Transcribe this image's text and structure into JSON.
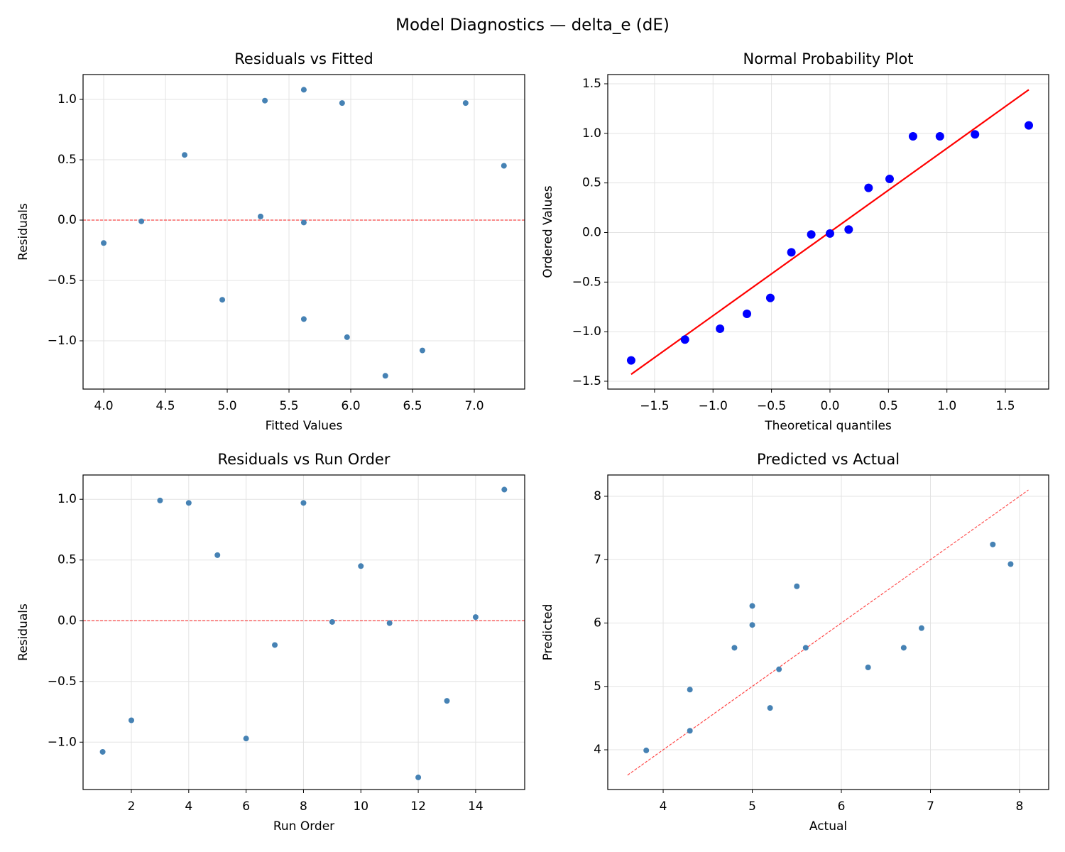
{
  "title": "Model Diagnostics — delta_e (dE)",
  "chart_data": [
    {
      "type": "scatter",
      "title": "Residuals vs Fitted",
      "xlabel": "Fitted Values",
      "ylabel": "Residuals",
      "x": [
        4.0,
        4.305,
        4.655,
        4.96,
        5.27,
        5.305,
        5.62,
        5.62,
        5.62,
        5.93,
        5.97,
        6.28,
        6.58,
        6.93,
        7.24
      ],
      "values": [
        -0.19,
        -0.01,
        0.54,
        -0.66,
        0.03,
        0.99,
        1.08,
        -0.02,
        -0.82,
        0.97,
        -0.97,
        -1.29,
        -1.08,
        0.97,
        0.45
      ],
      "color": "#4682b4",
      "marker_size": 4,
      "hline": {
        "y": 0,
        "color": "#ff0000",
        "dashed": true
      },
      "xlim": [
        3.833,
        7.408
      ],
      "ylim": [
        -1.4,
        1.206
      ],
      "xticks": [
        {
          "value": 4,
          "label": "4.0"
        },
        4.5,
        {
          "value": 5,
          "label": "5.0"
        },
        5.5,
        {
          "value": 6,
          "label": "6.0"
        },
        6.5,
        {
          "value": 7,
          "label": "7.0"
        }
      ],
      "yticks": [
        {
          "value": -1,
          "label": "−1.0"
        },
        {
          "value": -0.5,
          "label": "−0.5"
        },
        {
          "value": 0,
          "label": "0.0"
        },
        0.5,
        {
          "value": 1,
          "label": "1.0"
        }
      ],
      "grid": true
    },
    {
      "type": "scatter",
      "title": "Normal Probability Plot",
      "xlabel": "Theoretical quantiles",
      "ylabel": "Ordered Values",
      "x": [
        -1.7,
        -1.24,
        -0.94,
        -0.71,
        -0.51,
        -0.33,
        -0.16,
        0,
        0.16,
        0.33,
        0.51,
        0.71,
        0.94,
        1.24,
        1.7
      ],
      "values": [
        -1.29,
        -1.08,
        -0.97,
        -0.82,
        -0.66,
        -0.2,
        -0.02,
        -0.01,
        0.03,
        0.45,
        0.54,
        0.97,
        0.97,
        0.99,
        1.08
      ],
      "color": "#0000ff",
      "marker_size": 6,
      "fit_line": {
        "x": [
          -1.7,
          1.7
        ],
        "y": [
          -1.43,
          1.44
        ],
        "color": "#ff0000",
        "dashed": false
      },
      "xlim": [
        -1.9,
        1.87
      ],
      "ylim": [
        -1.579,
        1.593
      ],
      "xticks": [
        {
          "value": -1.5,
          "label": "−1.5"
        },
        {
          "value": -1,
          "label": "−1.0"
        },
        {
          "value": -0.5,
          "label": "−0.5"
        },
        {
          "value": 0,
          "label": "0.0"
        },
        0.5,
        {
          "value": 1,
          "label": "1.0"
        },
        1.5
      ],
      "yticks": [
        {
          "value": -1.5,
          "label": "−1.5"
        },
        {
          "value": -1,
          "label": "−1.0"
        },
        {
          "value": -0.5,
          "label": "−0.5"
        },
        {
          "value": 0,
          "label": "0.0"
        },
        0.5,
        {
          "value": 1,
          "label": "1.0"
        },
        1.5
      ],
      "grid": true
    },
    {
      "type": "scatter",
      "title": "Residuals vs Run Order",
      "xlabel": "Run Order",
      "ylabel": "Residuals",
      "x": [
        1,
        2,
        3,
        4,
        5,
        6,
        7,
        8,
        9,
        10,
        11,
        12,
        13,
        14,
        15
      ],
      "values": [
        -1.08,
        -0.82,
        0.99,
        0.97,
        0.54,
        -0.97,
        -0.2,
        0.97,
        -0.01,
        0.45,
        -0.02,
        -1.29,
        -0.66,
        0.03,
        1.08
      ],
      "color": "#4682b4",
      "marker_size": 4,
      "hline": {
        "y": 0,
        "color": "#ff0000",
        "dashed": true
      },
      "xlim": [
        0.317,
        15.71
      ],
      "ylim": [
        -1.39,
        1.2
      ],
      "xticks": [
        2,
        4,
        6,
        8,
        10,
        12,
        14
      ],
      "yticks": [
        {
          "value": -1,
          "label": "−1.0"
        },
        {
          "value": -0.5,
          "label": "−0.5"
        },
        {
          "value": 0,
          "label": "0.0"
        },
        0.5,
        {
          "value": 1,
          "label": "1.0"
        }
      ],
      "grid": true
    },
    {
      "type": "scatter",
      "title": "Predicted vs Actual",
      "xlabel": "Actual",
      "ylabel": "Predicted",
      "x": [
        3.81,
        4.3,
        4.3,
        4.8,
        5.0,
        5.0,
        5.3,
        5.5,
        5.2,
        5.6,
        6.3,
        6.7,
        6.9,
        7.7,
        7.9
      ],
      "values": [
        3.99,
        4.95,
        4.3,
        5.61,
        6.27,
        5.97,
        5.27,
        6.58,
        4.66,
        5.61,
        5.3,
        5.61,
        5.92,
        7.24,
        6.93
      ],
      "color": "#4682b4",
      "marker_size": 4,
      "fit_line": {
        "x": [
          3.6,
          8.1
        ],
        "y": [
          3.6,
          8.1
        ],
        "color": "#ff0000",
        "dashed": true
      },
      "xlim": [
        3.378,
        8.327
      ],
      "ylim": [
        3.373,
        8.336
      ],
      "xticks": [
        4,
        5,
        6,
        7,
        8
      ],
      "yticks": [
        4,
        5,
        6,
        7,
        8
      ],
      "grid": true
    }
  ]
}
